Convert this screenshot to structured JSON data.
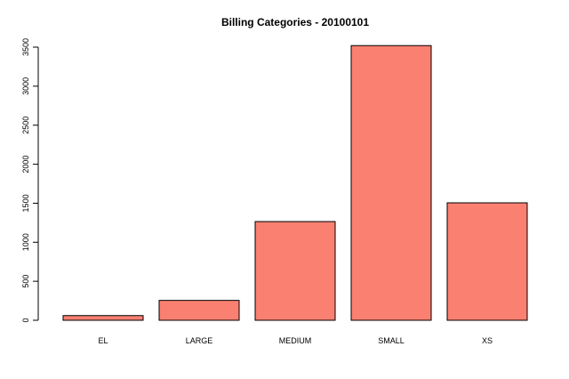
{
  "chart_data": {
    "type": "bar",
    "title": "Billing Categories -  20100101",
    "xlabel": "",
    "ylabel": "",
    "categories": [
      "EL",
      "LARGE",
      "MEDIUM",
      "SMALL",
      "XS"
    ],
    "values": [
      60,
      255,
      1265,
      3520,
      1505
    ],
    "ylim": [
      0,
      3500
    ],
    "yticks": [
      "0",
      "500",
      "1000",
      "1500",
      "2000",
      "2500",
      "3000",
      "3500"
    ],
    "bar_color": "#fa8072",
    "bar_border_color": "#000000",
    "grid": false,
    "legend": "none"
  }
}
